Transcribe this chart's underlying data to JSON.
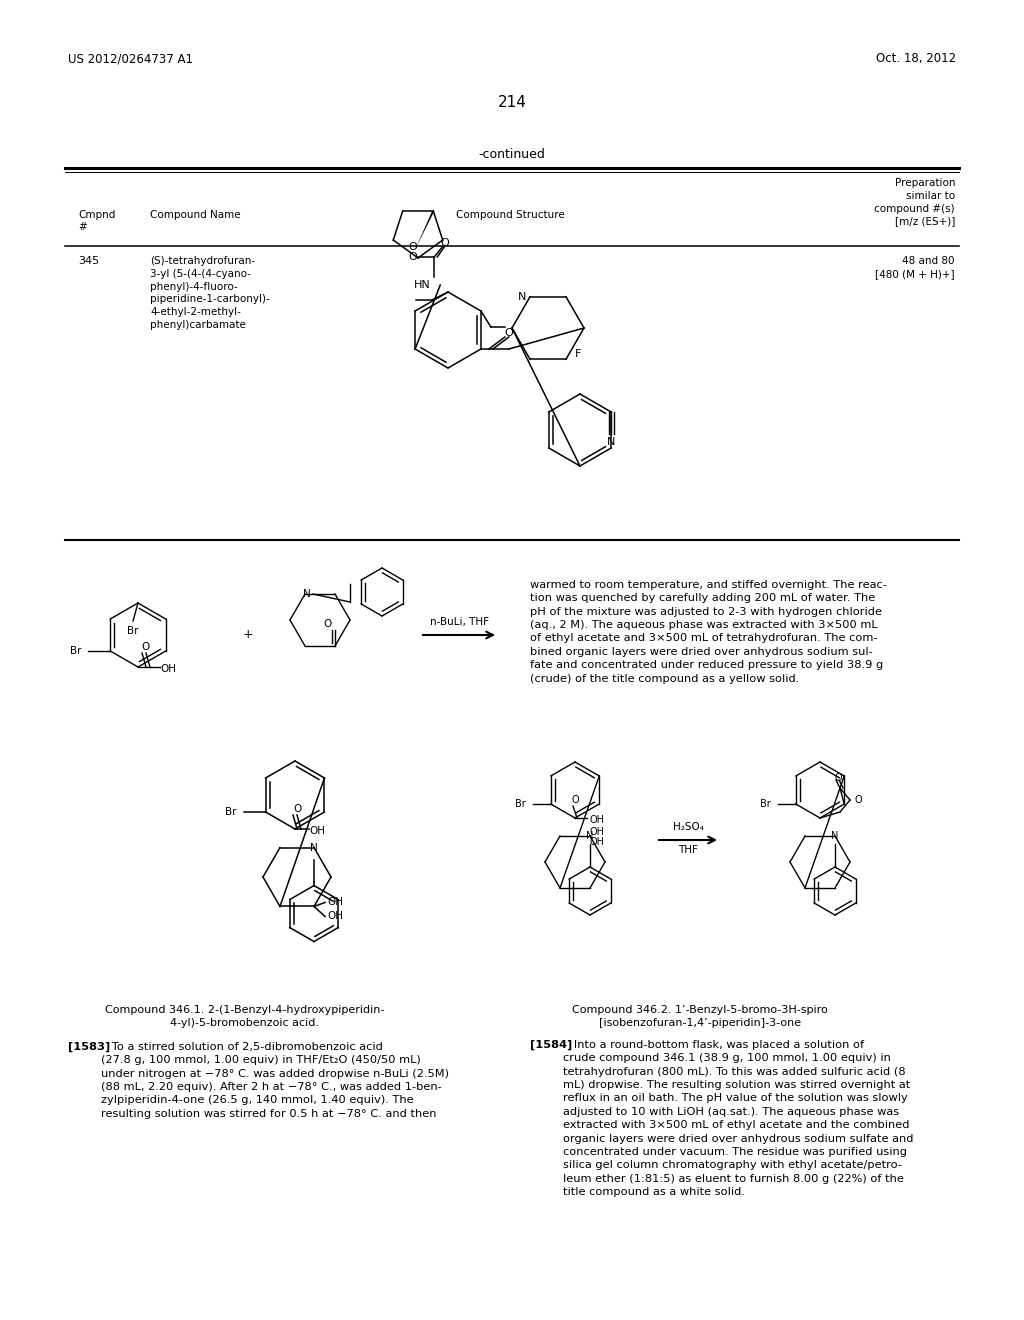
{
  "bg_color": "#ffffff",
  "header_left": "US 2012/0264737 A1",
  "header_right": "Oct. 18, 2012",
  "page_number": "214",
  "continued_label": "-continued",
  "col4_header": "Preparation\nsimilar to\ncompound #(s)\n[m/z (ES+)]",
  "cmpnd_num": "345",
  "cmpnd_name": "(S)-tetrahydrofuran-\n3-yl (5-(4-(4-cyano-\nphenyl)-4-fluoro-\npiperidine-1-carbonyl)-\n4-ethyl-2-methyl-\nphenyl)carbamate",
  "prep_info": "48 and 80\n[480 (M + H)+]",
  "caption_346_1": "Compound 346.1. 2-(1-Benzyl-4-hydroxypiperidin-\n4-yl)-5-bromobenzoic acid.",
  "caption_346_2": "Compound 346.2. 1’-Benzyl-5-bromo-3H-spiro\n[isobenzofuran-1,4’-piperidin]-3-one",
  "reaction_label": "n-BuLi, THF",
  "reaction2_top": "H₂SO₄",
  "reaction2_bot": "THF",
  "par_1583_bold": "[1583]",
  "par_1583": "   To a stirred solution of 2,5-dibromobenzoic acid\n(27.8 g, 100 mmol, 1.00 equiv) in THF/Et₂O (450/50 mL)\nunder nitrogen at −78° C. was added dropwise n-BuLi (2.5M)\n(88 mL, 2.20 equiv). After 2 h at −78° C., was added 1-ben-\nzylpiperidin-4-one (26.5 g, 140 mmol, 1.40 equiv). The\nresulting solution was stirred for 0.5 h at −78° C. and then",
  "par_right_cont": "warmed to room temperature, and stiffed overnight. The reac-\ntion was quenched by carefully adding 200 mL of water. The\npH of the mixture was adjusted to 2-3 with hydrogen chloride\n(aq., 2 M). The aqueous phase was extracted with 3×500 mL\nof ethyl acetate and 3×500 mL of tetrahydrofuran. The com-\nbined organic layers were dried over anhydrous sodium sul-\nfate and concentrated under reduced pressure to yield 38.9 g\n(crude) of the title compound as a yellow solid.",
  "par_1584_bold": "[1584]",
  "par_1584": "   Into a round-bottom flask, was placed a solution of\ncrude compound 346.1 (38.9 g, 100 mmol, 1.00 equiv) in\ntetrahydrofuran (800 mL). To this was added sulfuric acid (8\nmL) dropwise. The resulting solution was stirred overnight at\nreflux in an oil bath. The pH value of the solution was slowly\nadjusted to 10 with LiOH (aq.sat.). The aqueous phase was\nextracted with 3×500 mL of ethyl acetate and the combined\norganic layers were dried over anhydrous sodium sulfate and\nconcentrated under vacuum. The residue was purified using\nsilica gel column chromatography with ethyl acetate/petro-\nleum ether (1:81:5) as eluent to furnish 8.00 g (22%) of the\ntitle compound as a white solid."
}
